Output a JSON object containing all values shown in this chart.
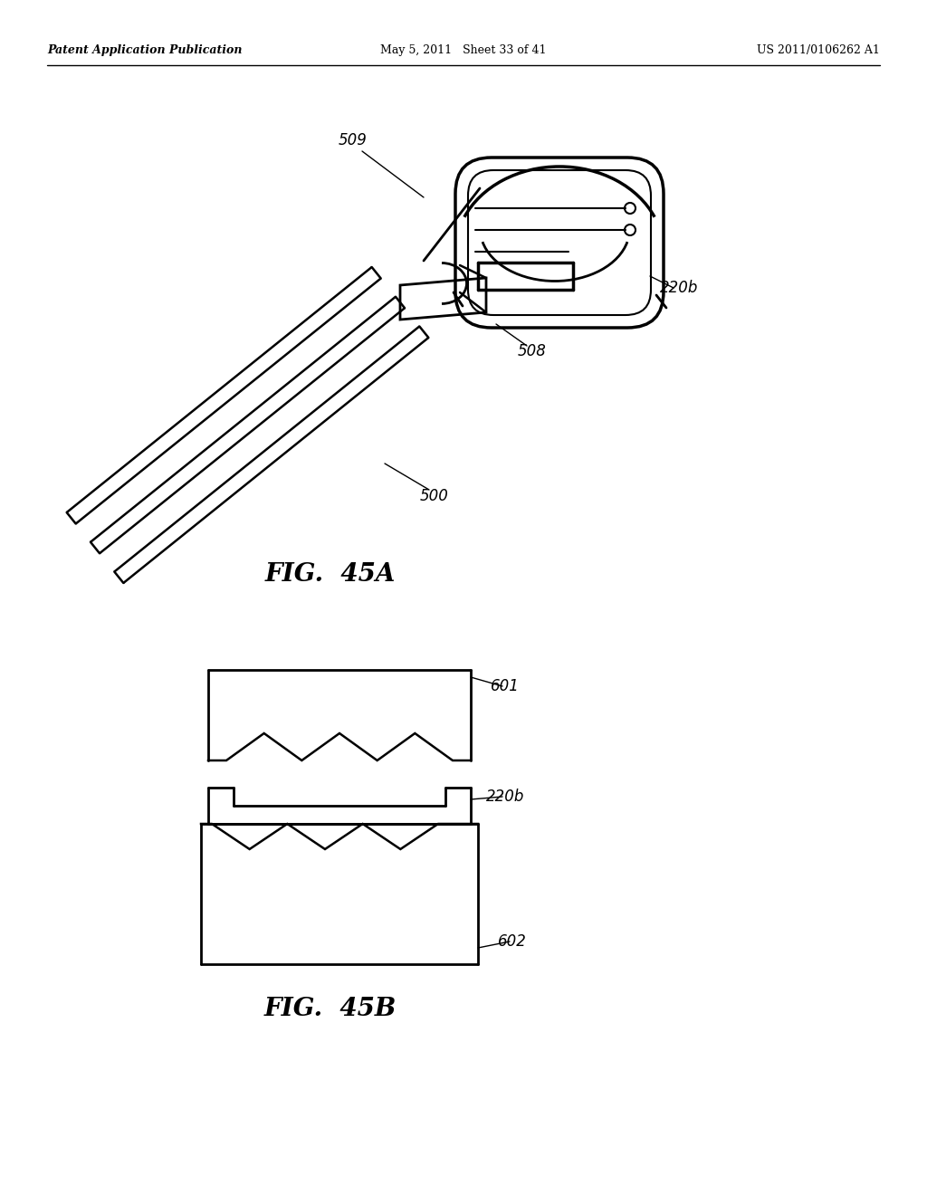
{
  "background_color": "#ffffff",
  "header_left": "Patent Application Publication",
  "header_center": "May 5, 2011   Sheet 33 of 41",
  "header_right": "US 2011/0106262 A1",
  "fig45a_label": "FIG.  45A",
  "fig45b_label": "FIG.  45B",
  "label_509": "509",
  "label_500": "500",
  "label_508": "508",
  "label_220b_a": "220b",
  "label_601": "601",
  "label_220b_b": "220b",
  "label_602": "602"
}
